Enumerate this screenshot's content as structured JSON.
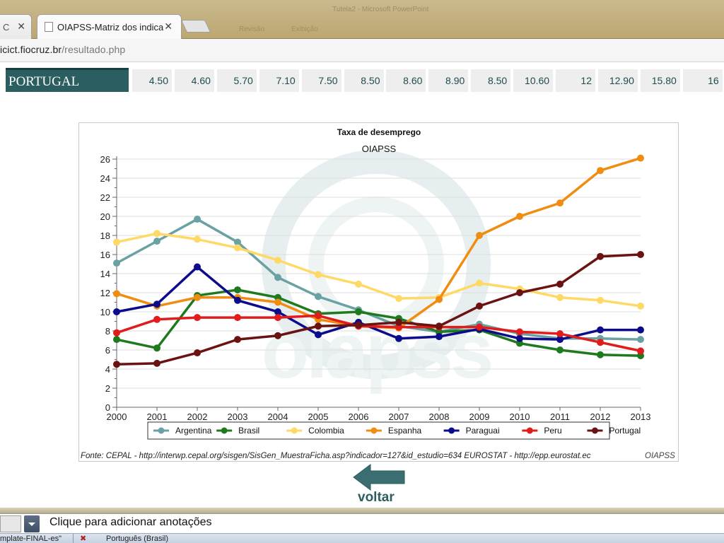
{
  "browser": {
    "prev_tab_title": "C",
    "tab_title": "OIAPSS-Matriz dos indicadores",
    "window_title": "Tutela2 - Microsoft PowerPoint",
    "menu_items": [
      "",
      "Revisão",
      "Exibição"
    ],
    "address_host": "icict.fiocruz.br",
    "address_path": "/resultado.php"
  },
  "table_row": {
    "country": "PORTUGAL",
    "values": [
      "4.50",
      "4.60",
      "5.70",
      "7.10",
      "7.50",
      "8.50",
      "8.60",
      "8.90",
      "8.50",
      "10.60",
      "12",
      "12.90",
      "15.80",
      "16"
    ]
  },
  "chart_data": {
    "type": "line",
    "title": "Taxa de desemprego",
    "subtitle": "OIAPSS",
    "xlabel": "",
    "ylabel": "",
    "x": [
      2000,
      2001,
      2002,
      2003,
      2004,
      2005,
      2006,
      2007,
      2008,
      2009,
      2010,
      2011,
      2012,
      2013
    ],
    "ylim": [
      0,
      26
    ],
    "yticks": [
      0,
      2,
      4,
      6,
      8,
      10,
      12,
      14,
      16,
      18,
      20,
      22,
      24,
      26
    ],
    "grid": true,
    "legend_position": "bottom",
    "series": [
      {
        "name": "Argentina",
        "color": "#6aa1a2",
        "values": [
          15.1,
          17.4,
          19.7,
          17.3,
          13.6,
          11.6,
          10.2,
          8.5,
          7.9,
          8.7,
          7.7,
          7.2,
          7.2,
          7.1
        ]
      },
      {
        "name": "Brasil",
        "color": "#1f7a1f",
        "values": [
          7.1,
          6.2,
          11.7,
          12.3,
          11.5,
          9.8,
          10.0,
          9.3,
          7.9,
          8.1,
          6.7,
          6.0,
          5.5,
          5.4
        ]
      },
      {
        "name": "Colombia",
        "color": "#ffd966",
        "values": [
          17.3,
          18.2,
          17.6,
          16.7,
          15.4,
          13.9,
          12.9,
          11.4,
          11.5,
          13.0,
          12.4,
          11.5,
          11.2,
          10.6
        ]
      },
      {
        "name": "Espanha",
        "color": "#f08c10",
        "values": [
          11.9,
          10.6,
          11.5,
          11.5,
          11.0,
          9.2,
          8.5,
          8.3,
          11.3,
          18.0,
          20.0,
          21.4,
          24.8,
          26.1
        ]
      },
      {
        "name": "Paraguai",
        "color": "#0b0b8c",
        "values": [
          10.0,
          10.8,
          14.7,
          11.2,
          10.0,
          7.6,
          8.9,
          7.2,
          7.4,
          8.2,
          7.2,
          7.1,
          8.1,
          8.1
        ]
      },
      {
        "name": "Peru",
        "color": "#e01c1c",
        "values": [
          7.8,
          9.2,
          9.4,
          9.4,
          9.4,
          9.6,
          8.5,
          8.4,
          8.4,
          8.4,
          7.9,
          7.7,
          6.8,
          5.9
        ]
      },
      {
        "name": "Portugal",
        "color": "#6b1212",
        "values": [
          4.5,
          4.6,
          5.7,
          7.1,
          7.5,
          8.5,
          8.6,
          8.9,
          8.5,
          10.6,
          12.0,
          12.9,
          15.8,
          16.0
        ]
      }
    ],
    "watermark": "oiapss"
  },
  "source_text": "Fonte: CEPAL  -  http://interwp.cepal.org/sisgen/SisGen_MuestraFicha.asp?indicador=127&id_estudio=634    EUROSTAT - http://epp.eurostat.ec",
  "source_overlap": "OIAPSS",
  "back": {
    "label": "voltar",
    "color": "#3a6e70"
  },
  "notes": {
    "placeholder": "Clique para adicionar anotações"
  },
  "statusbar": {
    "template": "mplate-FINAL-es\"",
    "language": "Português (Brasil)"
  }
}
